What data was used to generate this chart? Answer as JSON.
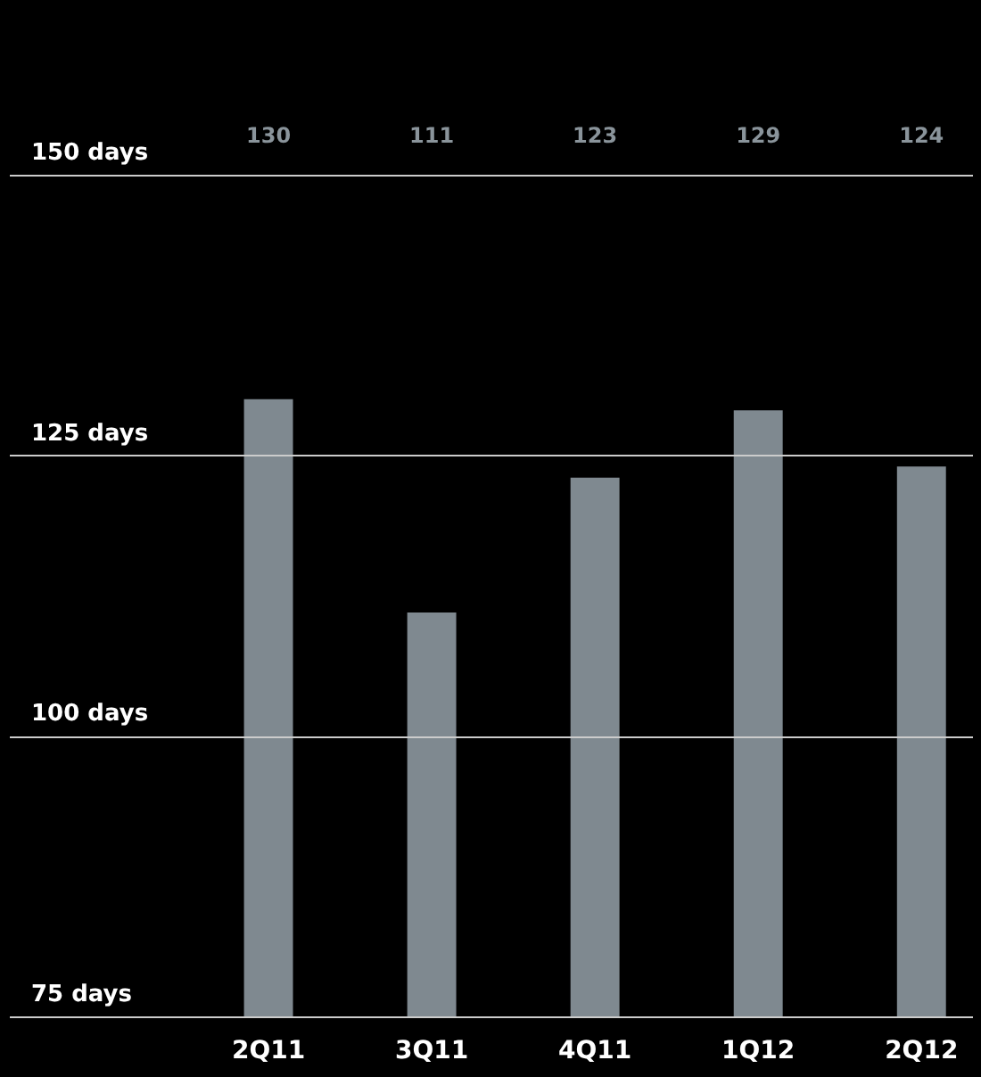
{
  "chart_data": {
    "type": "bar",
    "categories": [
      "2Q11",
      "3Q11",
      "4Q11",
      "1Q12",
      "2Q12"
    ],
    "values": [
      130,
      111,
      123,
      129,
      124
    ],
    "color": "#7f8990",
    "ylim": [
      75,
      150
    ],
    "yticks": [
      {
        "value": 75,
        "label": "75 days"
      },
      {
        "value": 100,
        "label": "100 days"
      },
      {
        "value": 125,
        "label": "125 days"
      },
      {
        "value": 150,
        "label": "150 days"
      }
    ],
    "grid": "y",
    "data_labels": true
  }
}
